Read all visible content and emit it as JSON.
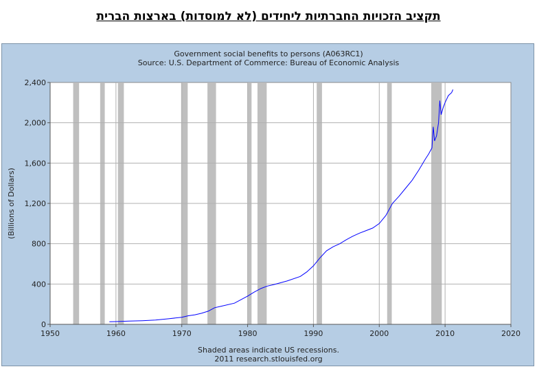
{
  "page": {
    "title": "תקציב הזכויות החברתיות ליחידים (לא למוסדות) בארצות הברית"
  },
  "chart_data": {
    "type": "line",
    "title": "Government social benefits to persons (A063RC1)",
    "subtitle": "Source: U.S. Department of Commerce: Bureau of Economic Analysis",
    "ylabel": "(Billions of Dollars)",
    "xlabel": "",
    "xlim": [
      1950,
      2020
    ],
    "ylim": [
      0,
      2400
    ],
    "x_ticks": [
      1950,
      1960,
      1970,
      1980,
      1990,
      2000,
      2010,
      2020
    ],
    "y_ticks": [
      0,
      400,
      800,
      1200,
      1600,
      2000,
      2400
    ],
    "y_tick_labels": [
      "0",
      "400",
      "800",
      "1,200",
      "1,600",
      "2,000",
      "2,400"
    ],
    "grid": true,
    "footer": [
      "Shaded areas indicate US recessions.",
      "2011 research.stlouisfed.org"
    ],
    "recessions": [
      [
        1953.5,
        1954.4
      ],
      [
        1957.6,
        1958.3
      ],
      [
        1960.3,
        1961.2
      ],
      [
        1969.9,
        1970.9
      ],
      [
        1973.9,
        1975.2
      ],
      [
        1980.0,
        1980.6
      ],
      [
        1981.5,
        1982.9
      ],
      [
        1990.5,
        1991.3
      ],
      [
        2001.2,
        2001.9
      ],
      [
        2007.9,
        2009.5
      ]
    ],
    "series": [
      {
        "name": "",
        "color": "#0000ff",
        "x": [
          1959.0,
          1960.0,
          1962.0,
          1964.0,
          1966.0,
          1968.0,
          1970.0,
          1971.0,
          1972.0,
          1973.0,
          1974.0,
          1975.0,
          1976.0,
          1978.0,
          1980.0,
          1981.0,
          1982.0,
          1983.0,
          1984.0,
          1986.0,
          1988.0,
          1989.0,
          1990.0,
          1991.0,
          1992.0,
          1993.0,
          1994.0,
          1995.0,
          1996.0,
          1997.0,
          1998.0,
          1999.0,
          2000.0,
          2001.0,
          2002.0,
          2003.0,
          2004.0,
          2005.0,
          2006.0,
          2007.0,
          2007.5,
          2008.0,
          2008.2,
          2008.4,
          2008.7,
          2009.0,
          2009.2,
          2009.4,
          2009.7,
          2010.0,
          2010.5,
          2011.0,
          2011.2
        ],
        "values": [
          25,
          27,
          32,
          36,
          42,
          55,
          70,
          85,
          95,
          110,
          130,
          165,
          180,
          210,
          280,
          320,
          355,
          380,
          395,
          430,
          475,
          520,
          580,
          660,
          730,
          770,
          800,
          840,
          875,
          905,
          930,
          955,
          1000,
          1080,
          1200,
          1270,
          1350,
          1430,
          1530,
          1640,
          1690,
          1750,
          1960,
          1820,
          1870,
          2000,
          2220,
          2080,
          2150,
          2200,
          2270,
          2300,
          2330
        ]
      }
    ]
  }
}
